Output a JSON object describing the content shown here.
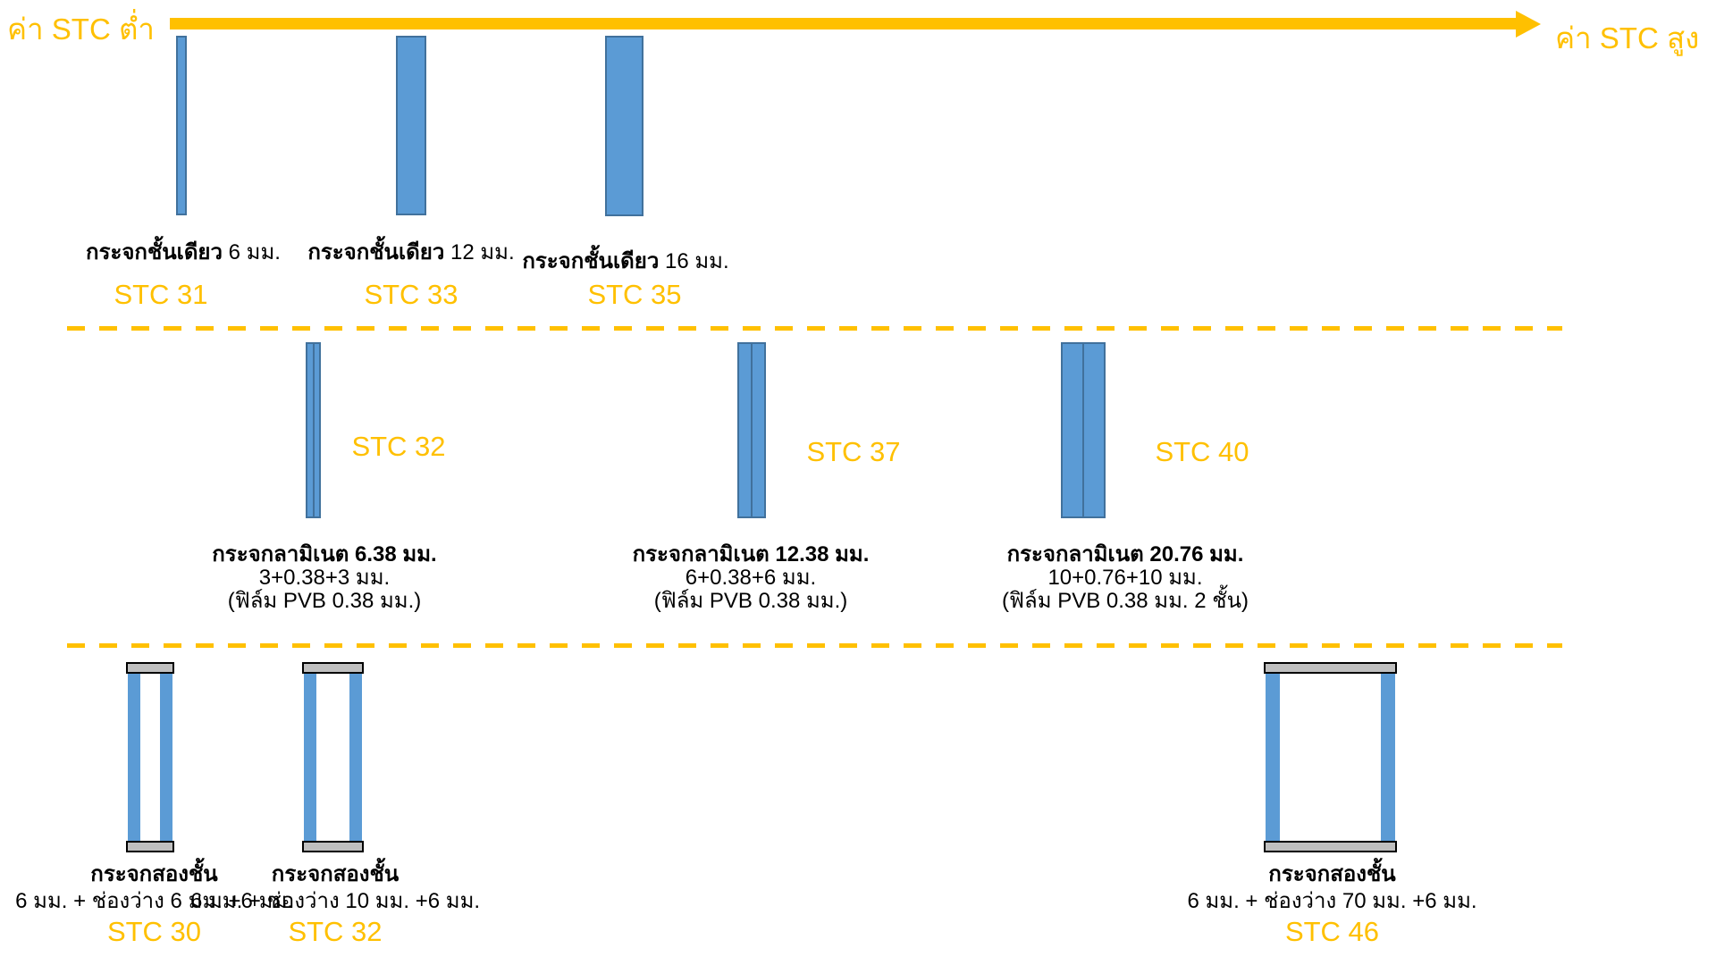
{
  "header": {
    "left_label": "ค่า STC ต่ำ",
    "right_label": "ค่า STC สูง"
  },
  "colors": {
    "accent": "#FFC000",
    "glass_fill": "#5B9BD5",
    "glass_border": "#41719C",
    "spacer_fill": "#BFBFBF",
    "spacer_border": "#000000"
  },
  "rows": [
    {
      "name": "single_pane_glass",
      "items": [
        {
          "label_bold": "กระจกชั้นเดียว",
          "label_rest": " 6 มม.",
          "stc": "STC 31"
        },
        {
          "label_bold": "กระจกชั้นเดียว",
          "label_rest": " 12 มม.",
          "stc": "STC 33"
        },
        {
          "label_bold": "กระจกชั้นเดียว",
          "label_rest": " 16 มม.",
          "stc": "STC 35"
        }
      ]
    },
    {
      "name": "laminated_glass",
      "items": [
        {
          "title": "กระจกลามิเนต 6.38 มม.",
          "line2": "3+0.38+3 มม.",
          "line3": "(ฟิล์ม PVB 0.38 มม.)",
          "stc": "STC 32"
        },
        {
          "title": "กระจกลามิเนต 12.38 มม.",
          "line2": "6+0.38+6 มม.",
          "line3": "(ฟิล์ม PVB 0.38 มม.)",
          "stc": "STC 37"
        },
        {
          "title": "กระจกลามิเนต 20.76 มม.",
          "line2": "10+0.76+10 มม.",
          "line3": "(ฟิล์ม PVB 0.38 มม. 2 ชั้น)",
          "stc": "STC 40"
        }
      ]
    },
    {
      "name": "double_glazing",
      "items": [
        {
          "title": "กระจกสองชั้น",
          "line2": "6 มม. + ช่องว่าง 6 มม. +6 มม.",
          "stc": "STC 30"
        },
        {
          "title": "กระจกสองชั้น",
          "line2": "6 มม. + ช่องว่าง 10 มม. +6 มม.",
          "stc": "STC 32"
        },
        {
          "title": "กระจกสองชั้น",
          "line2": "6 มม. + ช่องว่าง  70 มม. +6 มม.",
          "stc": "STC 46"
        }
      ]
    }
  ]
}
